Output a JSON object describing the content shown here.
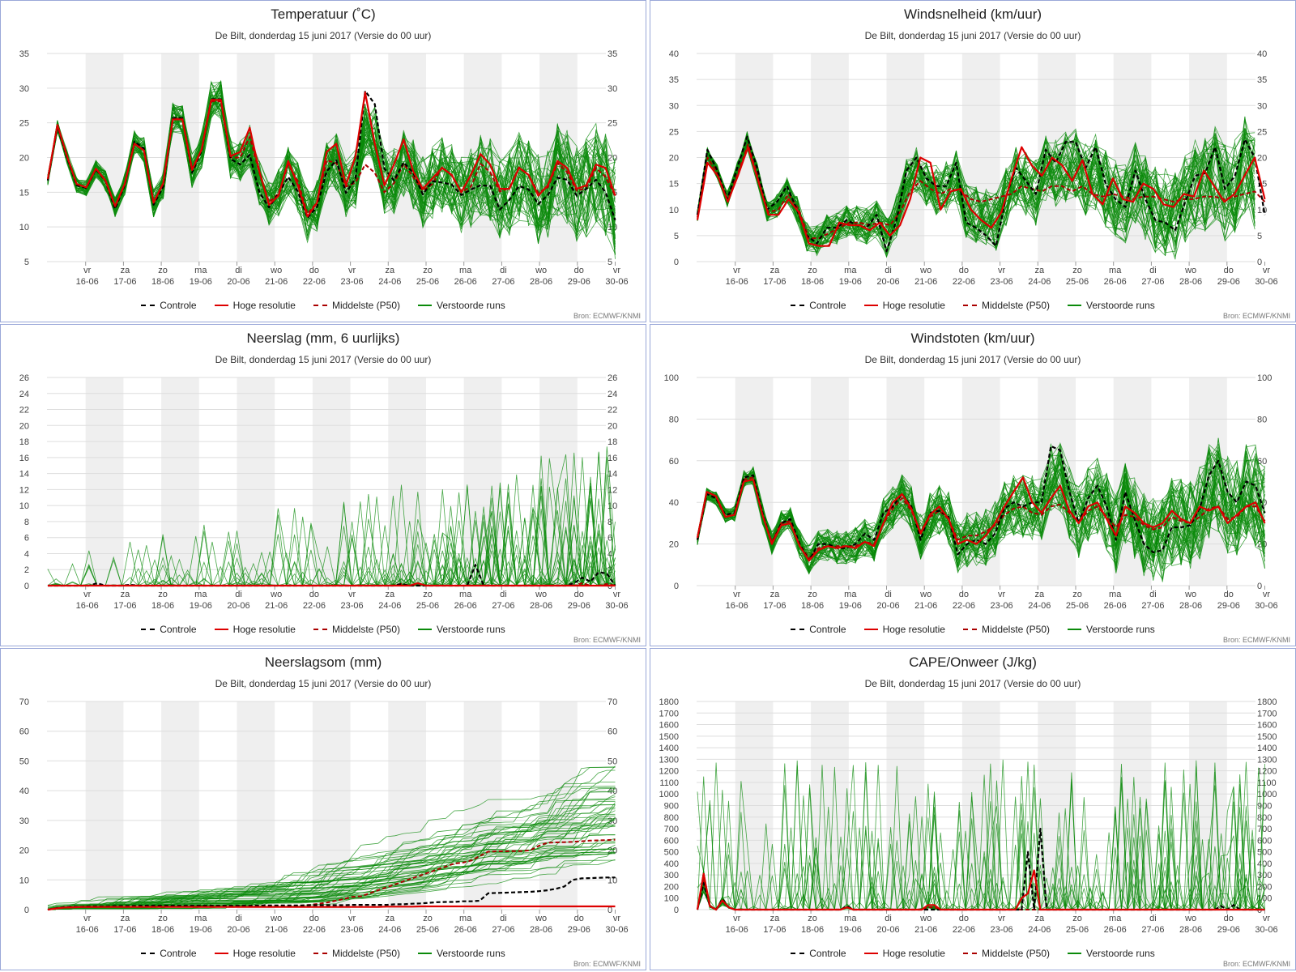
{
  "subtitle": "De Bilt, donderdag 15 juni 2017 (Versie do 00 uur)",
  "source": "Bron: ECMWF/KNMI",
  "legend": [
    {
      "label": "Controle",
      "color": "#000000",
      "dash": true
    },
    {
      "label": "Hoge resolutie",
      "color": "#dd0000",
      "dash": false
    },
    {
      "label": "Middelste (P50)",
      "color": "#aa0000",
      "dash": true
    },
    {
      "label": "Verstoorde runs",
      "color": "#0a8a0a",
      "dash": false
    }
  ],
  "x_axis": {
    "day_labels": [
      "vr",
      "za",
      "zo",
      "ma",
      "di",
      "wo",
      "do",
      "vr",
      "za",
      "zo",
      "ma",
      "di",
      "wo",
      "do",
      "vr"
    ],
    "date_labels": [
      "16-06",
      "17-06",
      "18-06",
      "19-06",
      "20-06",
      "21-06",
      "22-06",
      "23-06",
      "24-06",
      "25-06",
      "26-06",
      "27-06",
      "28-06",
      "29-06",
      "30-06"
    ],
    "shaded_days": [
      "16-06",
      "18-06",
      "20-06",
      "22-06",
      "24-06",
      "26-06",
      "28-06"
    ]
  },
  "colors": {
    "control": "#000000",
    "hires": "#dd0000",
    "p50": "#aa0000",
    "ensemble": "#0a8a0a",
    "shade": "#efefef",
    "grid": "#dddddd"
  },
  "chart_data": [
    {
      "id": "temp",
      "type": "line",
      "title": "Temperatuur (˚C)",
      "ylim": [
        5,
        35
      ],
      "yticks": [
        5,
        10,
        15,
        20,
        25,
        30,
        35
      ],
      "control": [
        16.7,
        24.5,
        20.0,
        16.0,
        15.6,
        18.3,
        16.6,
        12.6,
        16.0,
        22.3,
        21.3,
        13.2,
        15.8,
        25.7,
        25.7,
        17.8,
        21.0,
        28.4,
        28.4,
        19.8,
        19.0,
        20.4,
        15.0,
        12.8,
        14.8,
        17.2,
        15.1,
        11.3,
        12.9,
        18.0,
        19.6,
        14.9,
        17.0,
        29.6,
        27.7,
        18.4,
        16.7,
        19.3,
        17.8,
        14.7,
        16.6,
        16.4,
        16.1,
        14.6,
        15.4,
        16.0,
        15.9,
        12.5,
        13.9,
        15.9,
        15.4,
        13.3,
        14.6,
        17.1,
        16.8,
        14.5,
        15.5,
        16.8,
        15.0,
        11.0
      ],
      "hires": [
        16.9,
        24.7,
        20.2,
        16.2,
        15.7,
        18.4,
        16.7,
        13.0,
        16.2,
        22.0,
        21.0,
        13.5,
        16.3,
        25.5,
        25.5,
        18.2,
        21.2,
        28.3,
        28.3,
        20.2,
        20.8,
        24.3,
        18.0,
        13.2,
        14.5,
        19.5,
        16.0,
        11.5,
        13.5,
        20.8,
        22.0,
        16.0,
        20.2,
        29.4,
        22.0,
        16.0,
        19.0,
        22.6,
        18.0,
        15.5,
        17.0,
        18.5,
        17.5,
        15.0,
        17.5,
        20.5,
        19.0,
        15.5,
        15.5,
        18.5,
        17.5,
        14.5,
        16.0,
        19.5,
        18.5,
        15.5,
        16.0,
        19.0,
        18.5,
        14.5
      ],
      "p50": [
        16.8,
        24.6,
        20.1,
        16.1,
        15.7,
        18.4,
        16.7,
        13.0,
        16.1,
        22.0,
        21.1,
        13.6,
        16.2,
        25.6,
        25.6,
        18.4,
        21.1,
        28.1,
        28.1,
        20.0,
        20.0,
        23.0,
        17.8,
        13.6,
        14.8,
        19.0,
        16.6,
        11.9,
        13.5,
        19.6,
        19.2,
        15.8,
        16.4,
        19.0,
        17.8,
        15.0,
        16.3,
        19.1,
        17.2,
        15.2,
        16.2,
        18.6,
        17.4,
        15.0,
        15.8,
        19.1,
        17.9,
        15.1,
        15.6,
        18.6,
        17.5,
        14.9,
        15.7,
        19.2,
        17.9,
        15.2,
        15.6,
        18.5,
        17.2,
        14.5
      ]
    },
    {
      "id": "wind",
      "type": "line",
      "title": "Windsnelheid (km/uur)",
      "ylim": [
        0,
        40
      ],
      "yticks": [
        0,
        5,
        10,
        15,
        20,
        25,
        30,
        35,
        40
      ],
      "control": [
        9.0,
        21.5,
        17.5,
        12.0,
        18.0,
        24.0,
        18.0,
        10.0,
        11.5,
        14.5,
        10.0,
        5.0,
        3.5,
        6.5,
        6.5,
        8.0,
        7.0,
        6.5,
        9.0,
        2.0,
        8.0,
        17.5,
        20.0,
        16.0,
        14.5,
        14.5,
        19.0,
        7.5,
        6.5,
        5.0,
        3.0,
        12.5,
        18.0,
        15.5,
        13.0,
        21.5,
        19.0,
        23.0,
        23.0,
        18.0,
        22.0,
        15.0,
        12.0,
        10.5,
        17.5,
        12.0,
        8.0,
        7.5,
        6.0,
        11.5,
        16.5,
        17.0,
        22.0,
        14.0,
        16.5,
        23.5,
        20.0,
        9.0
      ],
      "hires": [
        8.0,
        19.0,
        16.5,
        11.5,
        16.5,
        22.0,
        15.5,
        9.0,
        9.0,
        12.0,
        9.5,
        3.5,
        3.0,
        3.0,
        7.5,
        7.0,
        7.0,
        6.0,
        7.5,
        5.0,
        7.0,
        12.0,
        20.0,
        19.0,
        10.0,
        13.5,
        14.0,
        10.0,
        8.0,
        6.5,
        9.5,
        16.0,
        22.0,
        18.5,
        16.5,
        20.0,
        18.5,
        15.5,
        19.5,
        13.0,
        11.0,
        16.0,
        12.0,
        11.5,
        15.0,
        14.0,
        11.0,
        10.5,
        13.0,
        12.5,
        17.5,
        14.5,
        11.5,
        13.0,
        16.5,
        20.0,
        12.0
      ],
      "p50": [
        8.5,
        20.0,
        17.0,
        12.0,
        17.0,
        22.5,
        16.0,
        9.5,
        10.0,
        13.0,
        10.0,
        4.5,
        4.5,
        5.5,
        6.5,
        7.5,
        7.5,
        7.0,
        7.5,
        7.0,
        9.5,
        13.5,
        15.5,
        14.0,
        13.0,
        14.0,
        13.5,
        12.0,
        11.5,
        12.0,
        12.5,
        13.0,
        14.5,
        14.0,
        13.5,
        14.5,
        14.5,
        13.5,
        14.5,
        13.0,
        12.5,
        13.0,
        12.5,
        12.0,
        12.5,
        12.5,
        12.0,
        11.5,
        12.0,
        12.0,
        12.5,
        12.5,
        12.0,
        12.5,
        13.0,
        13.5,
        11.5
      ]
    },
    {
      "id": "precip",
      "type": "line",
      "title": "Neerslag (mm, 6 uurlijks)",
      "ylim": [
        0,
        26
      ],
      "yticks": [
        0,
        2,
        4,
        6,
        8,
        10,
        12,
        14,
        16,
        18,
        20,
        22,
        24,
        26
      ],
      "control": [
        0,
        0,
        0,
        0,
        0,
        0,
        0.3,
        0,
        0,
        0,
        0.1,
        0,
        0,
        0,
        0,
        0,
        0,
        0,
        0,
        0,
        0,
        0,
        0,
        0,
        0,
        0,
        0,
        0,
        0,
        0,
        0,
        0,
        0,
        0,
        0,
        0,
        0,
        0,
        0,
        0,
        0,
        0,
        0,
        0.2,
        0,
        0,
        0,
        0,
        0,
        0,
        0,
        0,
        2.6,
        0,
        0,
        0,
        0,
        0,
        0,
        0,
        0,
        0,
        0,
        0,
        0.3,
        1.0,
        0.5,
        1.7,
        1.5,
        0
      ],
      "hires": [
        0,
        0,
        0,
        0,
        0,
        0,
        0,
        0,
        0,
        0,
        0,
        0,
        0,
        0,
        0,
        0,
        0,
        0,
        0,
        0,
        0,
        0,
        0,
        0,
        0,
        0,
        0,
        0,
        0,
        0,
        0,
        0,
        0,
        0,
        0,
        0,
        0,
        0,
        0,
        0,
        0,
        0,
        0,
        0,
        0,
        0.3,
        0,
        0,
        0,
        0,
        0,
        0,
        0,
        0,
        0,
        0,
        0,
        0,
        0,
        0,
        0,
        0,
        0,
        0,
        0,
        0,
        0,
        0,
        0,
        0
      ],
      "p50": [
        0,
        0,
        0,
        0,
        0,
        0,
        0,
        0,
        0,
        0,
        0,
        0,
        0,
        0,
        0,
        0,
        0,
        0,
        0,
        0,
        0,
        0,
        0,
        0,
        0,
        0,
        0,
        0,
        0,
        0,
        0,
        0,
        0,
        0,
        0,
        0,
        0,
        0,
        0,
        0,
        0,
        0,
        0,
        0.2,
        0,
        0,
        0,
        0,
        0,
        0,
        0,
        0,
        0,
        0,
        0,
        0,
        0,
        0,
        0,
        0,
        0,
        0,
        0,
        0,
        0,
        0.3,
        0,
        0,
        0.2,
        0
      ]
    },
    {
      "id": "gust",
      "type": "line",
      "title": "Windstoten (km/uur)",
      "ylim": [
        0,
        100
      ],
      "yticks": [
        0,
        20,
        40,
        60,
        80,
        100
      ],
      "control": [
        22,
        44,
        42,
        34,
        35,
        52,
        53,
        35,
        20,
        30,
        32,
        20,
        12,
        20,
        20,
        18,
        18,
        20,
        25,
        22,
        35,
        38,
        44,
        38,
        22,
        35,
        36,
        33,
        15,
        20,
        22,
        20,
        25,
        37,
        40,
        38,
        40,
        40,
        67,
        65,
        45,
        30,
        42,
        48,
        38,
        22,
        45,
        32,
        20,
        16,
        17,
        28,
        28,
        29,
        37,
        53,
        60,
        45,
        40,
        50,
        48,
        35
      ],
      "hires": [
        23,
        45,
        43,
        33,
        34,
        50,
        51,
        34,
        20,
        29,
        30,
        19,
        12,
        17,
        19,
        18,
        19,
        18,
        21,
        19,
        30,
        40,
        44,
        37,
        25,
        34,
        38,
        32,
        20,
        22,
        20,
        24,
        30,
        38,
        45,
        52,
        40,
        35,
        42,
        48,
        36,
        30,
        38,
        40,
        32,
        24,
        38,
        35,
        30,
        28,
        30,
        36,
        32,
        30,
        38,
        36,
        38,
        30,
        34,
        38,
        40,
        30
      ],
      "p50": [
        22,
        44,
        42,
        33,
        34,
        51,
        52,
        34,
        21,
        30,
        31,
        20,
        13,
        18,
        19,
        19,
        19,
        19,
        21,
        20,
        30,
        37,
        42,
        36,
        26,
        33,
        36,
        32,
        22,
        24,
        24,
        26,
        29,
        34,
        37,
        38,
        35,
        34,
        38,
        39,
        35,
        30,
        36,
        38,
        33,
        28,
        34,
        33,
        29,
        27,
        28,
        33,
        31,
        30,
        33,
        37,
        38,
        32,
        33,
        38,
        38,
        31
      ]
    },
    {
      "id": "precipsum",
      "type": "line",
      "title": "Neerslagsom (mm)",
      "ylim": [
        0,
        70
      ],
      "yticks": [
        0,
        10,
        20,
        30,
        40,
        50,
        60,
        70
      ],
      "control": [
        0,
        0.5,
        0.9,
        1.0,
        1.0,
        1.1,
        1.1,
        1.1,
        1.2,
        1.2,
        1.2,
        1.3,
        1.3,
        1.3,
        1.3,
        1.3,
        1.3,
        1.3,
        1.3,
        1.3,
        1.3,
        1.3,
        1.3,
        1.3,
        1.3,
        1.4,
        1.4,
        1.4,
        1.4,
        1.4,
        1.4,
        1.5,
        1.5,
        1.5,
        1.5,
        1.5,
        1.6,
        1.6,
        1.6,
        1.6,
        1.6,
        1.8,
        1.8,
        2.0,
        2.1,
        2.3,
        2.5,
        2.6,
        2.6,
        2.8,
        2.8,
        3.0,
        5.5,
        5.6,
        5.7,
        5.8,
        5.9,
        6.0,
        6.2,
        6.5,
        7.0,
        7.8,
        10.0,
        10.5,
        10.6,
        10.7,
        10.8,
        10.8
      ],
      "hires": [
        0,
        0.4,
        0.7,
        0.8,
        0.9,
        0.9,
        0.9,
        0.9,
        0.9,
        0.9,
        0.9,
        0.9,
        0.9,
        0.9,
        0.9,
        0.9,
        0.9,
        0.9,
        0.9,
        0.9,
        0.9,
        0.9,
        0.9,
        0.9,
        0.9,
        0.9,
        0.9,
        0.9,
        0.9,
        0.9,
        0.9,
        0.9,
        0.9,
        0.9,
        0.9,
        0.9,
        0.9,
        0.9,
        0.9,
        0.9,
        1.0,
        1.0,
        1.0,
        1.0,
        1.1,
        1.1,
        1.1,
        1.1,
        1.1,
        1.1,
        1.1,
        1.1,
        1.1,
        1.1,
        1.1,
        1.1,
        1.1,
        1.1,
        1.1,
        1.1,
        1.1,
        1.1,
        1.1,
        1.1,
        1.1,
        1.1,
        1.1,
        1.1
      ],
      "p50": [
        0,
        0.4,
        0.7,
        0.8,
        0.9,
        0.9,
        0.9,
        1.0,
        1.0,
        1.0,
        1.0,
        1.0,
        1.0,
        1.0,
        1.0,
        1.0,
        1.0,
        1.0,
        1.0,
        1.0,
        1.0,
        1.0,
        1.0,
        1.0,
        1.0,
        1.0,
        1.0,
        1.1,
        1.1,
        1.2,
        1.4,
        1.6,
        2.0,
        2.4,
        3.0,
        3.6,
        4.3,
        4.5,
        5.5,
        6.5,
        7.5,
        8.5,
        9.5,
        10.5,
        11.5,
        12.5,
        13.5,
        14.5,
        15.5,
        15.8,
        16.5,
        18.0,
        19.5,
        19.6,
        19.6,
        19.7,
        19.7,
        20.0,
        21.5,
        22.5,
        22.6,
        22.7,
        22.8,
        23.0,
        23.2,
        23.3,
        23.4,
        23.5
      ]
    },
    {
      "id": "cape",
      "type": "line",
      "title": "CAPE/Onweer (J/kg)",
      "ylim": [
        0,
        1800
      ],
      "yticks": [
        0,
        100,
        200,
        300,
        400,
        500,
        600,
        700,
        800,
        900,
        1000,
        1100,
        1200,
        1300,
        1400,
        1500,
        1600,
        1700,
        1800
      ],
      "control": [
        0,
        230,
        30,
        0,
        90,
        20,
        0,
        0,
        0,
        0,
        0,
        0,
        0,
        0,
        0,
        0,
        0,
        0,
        0,
        0,
        0,
        0,
        0,
        0,
        30,
        0,
        0,
        0,
        0,
        0,
        0,
        0,
        0,
        0,
        0,
        0,
        0,
        0,
        0,
        0,
        0,
        0,
        0,
        0,
        0,
        0,
        0,
        0,
        0,
        0,
        0,
        0,
        0,
        500,
        0,
        700,
        0,
        0,
        0,
        0,
        0,
        0,
        0,
        0,
        0,
        0,
        0,
        0,
        0,
        0,
        0,
        0,
        0,
        0,
        0,
        0,
        0,
        0,
        0,
        0,
        0,
        0,
        0,
        0,
        30,
        0,
        40,
        0,
        0,
        0,
        0,
        0
      ],
      "hires": [
        0,
        310,
        30,
        0,
        80,
        20,
        0,
        0,
        0,
        0,
        0,
        0,
        0,
        0,
        0,
        0,
        0,
        0,
        0,
        0,
        0,
        0,
        0,
        0,
        20,
        0,
        0,
        0,
        0,
        0,
        0,
        0,
        0,
        0,
        0,
        0,
        0,
        40,
        40,
        0,
        0,
        0,
        0,
        0,
        0,
        0,
        0,
        0,
        0,
        0,
        0,
        0,
        100,
        140,
        340,
        0,
        0,
        0,
        0,
        0,
        0,
        0,
        0,
        0,
        0,
        0,
        0,
        0,
        0,
        0,
        0,
        0,
        0,
        0,
        0,
        0,
        0,
        0,
        0,
        0,
        0,
        0,
        0,
        0,
        0,
        0,
        0,
        0,
        0,
        0,
        0,
        0
      ],
      "p50": [
        0,
        250,
        30,
        0,
        80,
        20,
        0,
        0,
        0,
        0,
        0,
        0,
        0,
        0,
        0,
        0,
        0,
        0,
        0,
        0,
        0,
        0,
        0,
        0,
        20,
        0,
        0,
        0,
        0,
        0,
        0,
        0,
        0,
        0,
        0,
        0,
        0,
        20,
        20,
        0,
        0,
        0,
        0,
        0,
        0,
        0,
        0,
        0,
        0,
        0,
        0,
        0,
        0,
        0,
        0,
        0,
        0,
        0,
        0,
        0,
        0,
        0,
        0,
        0,
        0,
        0,
        0,
        0,
        0,
        0,
        0,
        0,
        0,
        0,
        0,
        0,
        0,
        0,
        0,
        0,
        0,
        0,
        0,
        0,
        0,
        0,
        0,
        0,
        0,
        0,
        0,
        0
      ]
    }
  ]
}
